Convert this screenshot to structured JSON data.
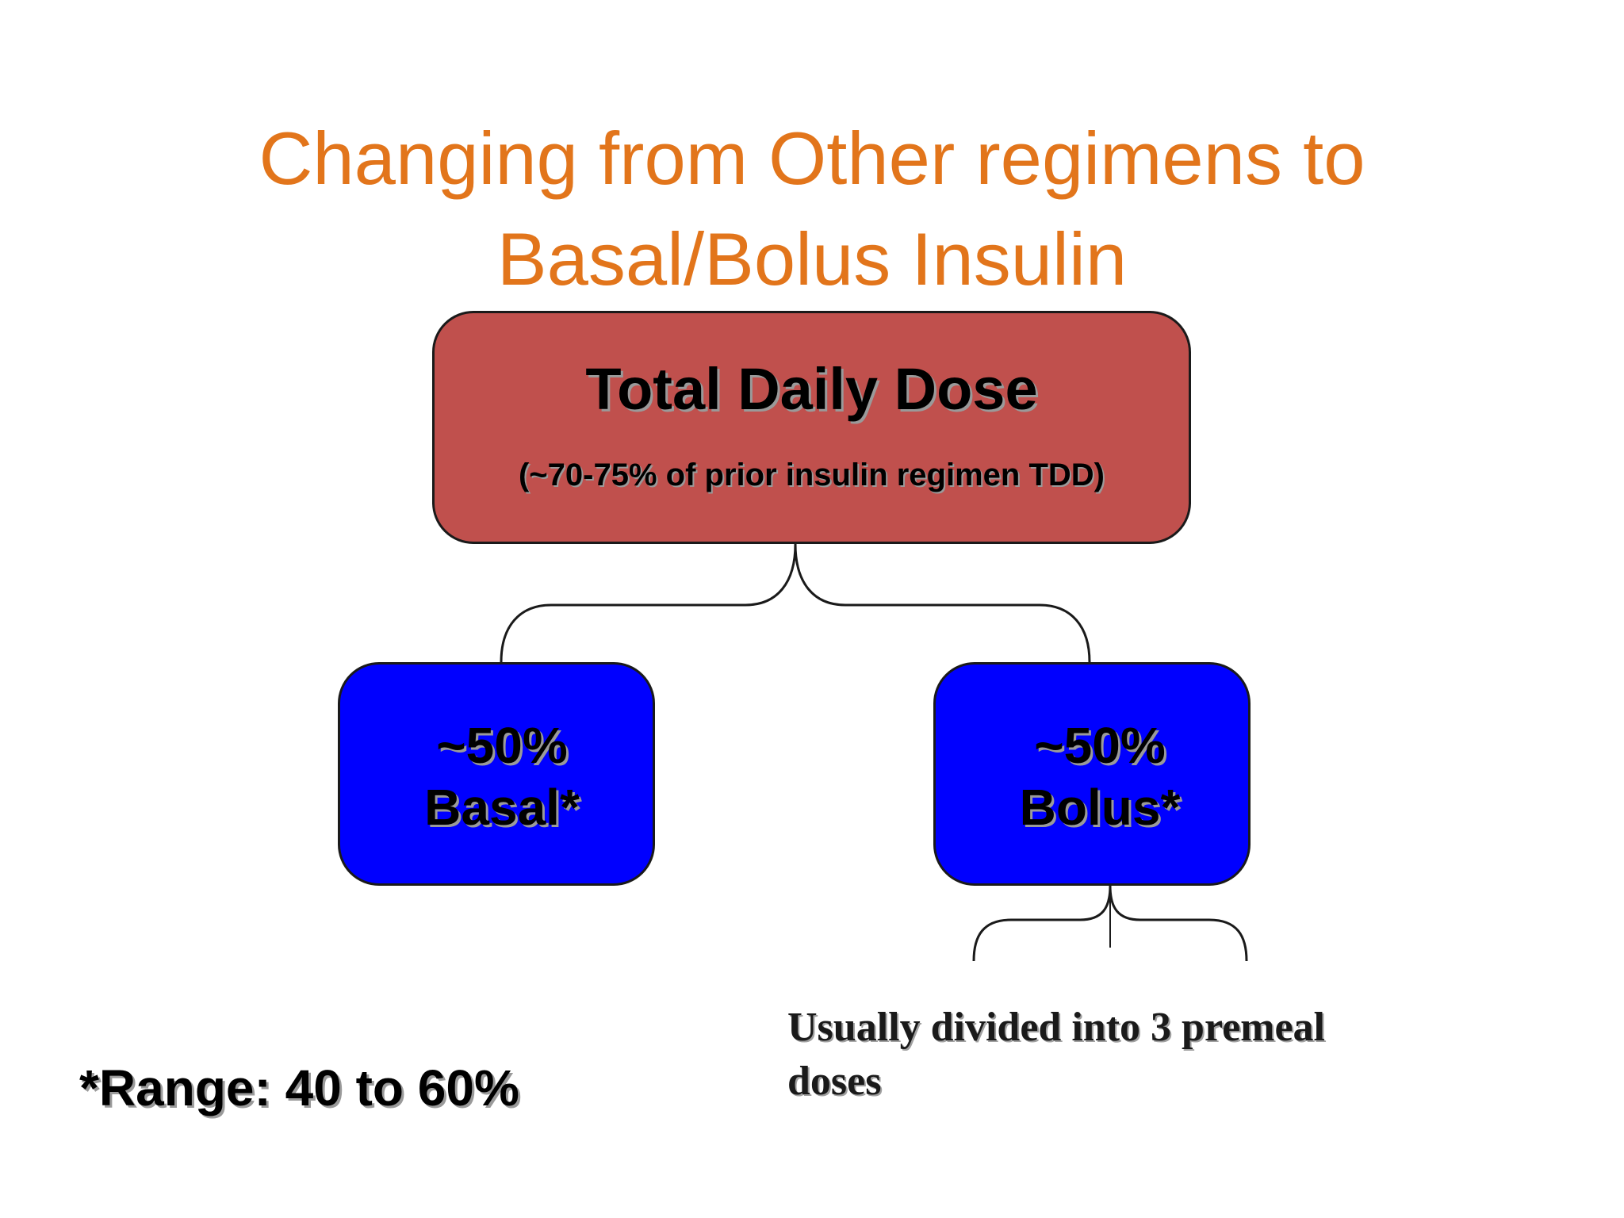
{
  "slide": {
    "title_line1": "Changing from Other regimens to",
    "title_line2": "Basal/Bolus Insulin"
  },
  "total_daily_dose": {
    "label": "Total Daily Dose",
    "sublabel": "(~70-75% of prior insulin regimen TDD)",
    "color": "#C0504D"
  },
  "basal": {
    "percent": "~50%",
    "label": "Basal*",
    "color": "#0000FF"
  },
  "bolus": {
    "percent": "~50%",
    "label": "Bolus*",
    "color": "#0000FF"
  },
  "bolus_note": {
    "line1": "Usually divided into 3 premeal",
    "line2": "doses"
  },
  "footnote": "*Range: 40 to 60%",
  "colors": {
    "title": "#E2751B",
    "connector": "#1a1a1a"
  }
}
